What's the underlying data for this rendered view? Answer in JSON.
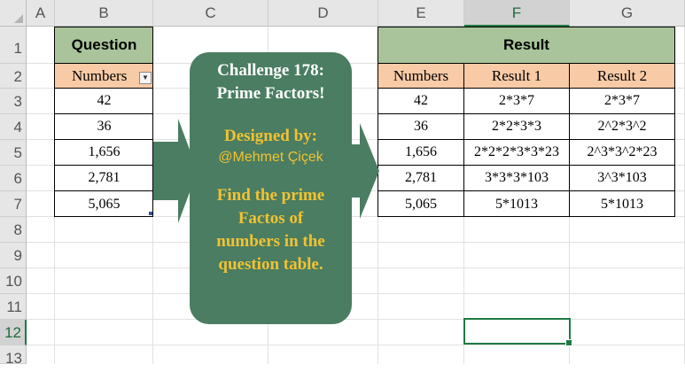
{
  "columns": [
    "A",
    "B",
    "C",
    "D",
    "E",
    "F",
    "G"
  ],
  "rows": [
    "1",
    "2",
    "3",
    "4",
    "5",
    "6",
    "7",
    "8",
    "9",
    "10",
    "11",
    "12",
    "13"
  ],
  "question": {
    "title": "Question",
    "header": "Numbers",
    "values": [
      "42",
      "36",
      "1,656",
      "2,781",
      "5,065"
    ]
  },
  "result": {
    "title": "Result",
    "headers": [
      "Numbers",
      "Result 1",
      "Result 2"
    ],
    "rows": [
      [
        "42",
        "2*3*7",
        "2*3*7"
      ],
      [
        "36",
        "2*2*3*3",
        "2^2*3^2"
      ],
      [
        "1,656",
        "2*2*2*3*3*23",
        "2^3*3^2*23"
      ],
      [
        "2,781",
        "3*3*3*103",
        "3^3*103"
      ],
      [
        "5,065",
        "5*1013",
        "5*1013"
      ]
    ]
  },
  "challenge": {
    "title_line1": "Challenge 178:",
    "title_line2": "Prime Factors!",
    "designed_by": "Designed by:",
    "author": "@Mehmet Çiçek",
    "instr_line1": "Find the prime",
    "instr_line2": "Factos of",
    "instr_line3": "numbers in the",
    "instr_line4": "question table."
  },
  "colors": {
    "header_green": "#a9c49a",
    "header_orange": "#f8cba6",
    "box_green": "#4a7d61",
    "arrow_green": "#4a7d61",
    "yellow_text": "#f2c232",
    "selection": "#1e7a45"
  },
  "active_cell": "F12"
}
